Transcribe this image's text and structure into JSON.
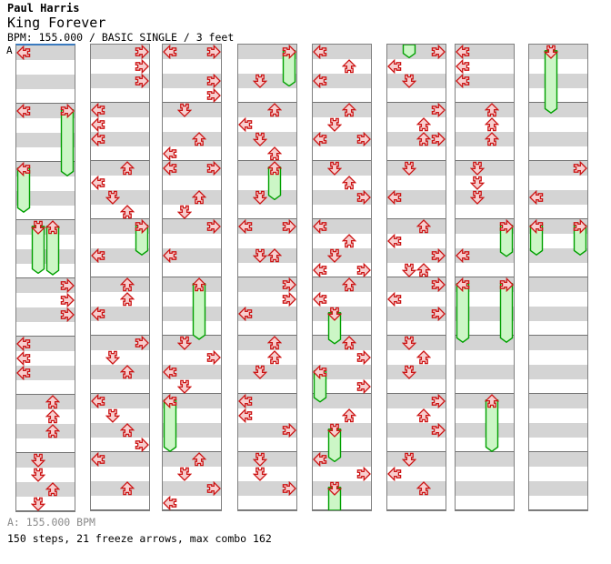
{
  "header": {
    "artist": "Paul Harris",
    "title": "King Forever",
    "info": "BPM: 155.000 / BASIC SINGLE / 3 feet"
  },
  "marker": {
    "label": "A"
  },
  "footer": {
    "bpm_note": "A: 155.000 BPM",
    "stats": "150 steps, 21 freeze arrows, max combo 162"
  },
  "colors": {
    "arrow_fill": "#f7cfcf",
    "arrow_stroke": "#cc1414",
    "freeze_fill": "#ccf6c6",
    "freeze_stroke": "#00a000",
    "stripe_gray": "#d4d4d4",
    "measure_line": "#737373",
    "column_border": "#808080",
    "bpm_marker_blue": "#3a7abf",
    "footer_note_gray": "#8a8a8a"
  },
  "chart_data": {
    "type": "step_chart",
    "lanes": [
      "L",
      "D",
      "U",
      "R"
    ],
    "rows_per_column": 32,
    "beats_per_measure": 4,
    "bpm": "155.000",
    "columns": [
      {
        "arrows": [
          [
            0,
            "L"
          ],
          [
            4,
            "L"
          ],
          [
            4,
            "R"
          ],
          [
            8,
            "L"
          ],
          [
            12,
            "D"
          ],
          [
            12,
            "U"
          ],
          [
            16,
            "R"
          ],
          [
            17,
            "R"
          ],
          [
            18,
            "R"
          ],
          [
            20,
            "L"
          ],
          [
            21,
            "L"
          ],
          [
            22,
            "L"
          ],
          [
            24,
            "U"
          ],
          [
            25,
            "U"
          ],
          [
            26,
            "U"
          ],
          [
            28,
            "D"
          ],
          [
            29,
            "D"
          ],
          [
            30,
            "U"
          ],
          [
            31,
            "D"
          ]
        ],
        "freezes": [
          [
            "R",
            4,
            9,
            "normal"
          ],
          [
            "L",
            8,
            11.5,
            "normal"
          ],
          [
            "D",
            12,
            15.7,
            "normal"
          ],
          [
            "U",
            12,
            15.8,
            "normal"
          ]
        ]
      },
      {
        "arrows": [
          [
            0,
            "R"
          ],
          [
            1,
            "R"
          ],
          [
            2,
            "R"
          ],
          [
            4,
            "L"
          ],
          [
            5,
            "L"
          ],
          [
            6,
            "L"
          ],
          [
            8,
            "U"
          ],
          [
            9,
            "L"
          ],
          [
            10,
            "D"
          ],
          [
            11,
            "U"
          ],
          [
            12,
            "R"
          ],
          [
            14,
            "L"
          ],
          [
            16,
            "U"
          ],
          [
            17,
            "U"
          ],
          [
            18,
            "L"
          ],
          [
            20,
            "R"
          ],
          [
            21,
            "D"
          ],
          [
            22,
            "U"
          ],
          [
            24,
            "L"
          ],
          [
            25,
            "D"
          ],
          [
            26,
            "U"
          ],
          [
            27,
            "R"
          ],
          [
            28,
            "L"
          ],
          [
            30,
            "U"
          ]
        ],
        "freezes": [
          [
            "R",
            12,
            14.5,
            "normal"
          ]
        ]
      },
      {
        "arrows": [
          [
            0,
            "L"
          ],
          [
            0,
            "R"
          ],
          [
            2,
            "R"
          ],
          [
            3,
            "R"
          ],
          [
            4,
            "D"
          ],
          [
            6,
            "U"
          ],
          [
            7,
            "L"
          ],
          [
            8,
            "L"
          ],
          [
            8,
            "R"
          ],
          [
            10,
            "U"
          ],
          [
            11,
            "D"
          ],
          [
            12,
            "R"
          ],
          [
            14,
            "L"
          ],
          [
            16,
            "U"
          ],
          [
            20,
            "D"
          ],
          [
            21,
            "R"
          ],
          [
            22,
            "L"
          ],
          [
            23,
            "D"
          ],
          [
            24,
            "L"
          ],
          [
            28,
            "U"
          ],
          [
            29,
            "D"
          ],
          [
            30,
            "R"
          ],
          [
            31,
            "L"
          ]
        ],
        "freezes": [
          [
            "U",
            16,
            20.3,
            "normal"
          ],
          [
            "L",
            24,
            28,
            "normal"
          ]
        ]
      },
      {
        "arrows": [
          [
            0,
            "R"
          ],
          [
            2,
            "D"
          ],
          [
            4,
            "U"
          ],
          [
            5,
            "L"
          ],
          [
            6,
            "D"
          ],
          [
            7,
            "U"
          ],
          [
            8,
            "U"
          ],
          [
            10,
            "D"
          ],
          [
            12,
            "L"
          ],
          [
            12,
            "R"
          ],
          [
            14,
            "D"
          ],
          [
            14,
            "U"
          ],
          [
            16,
            "R"
          ],
          [
            17,
            "R"
          ],
          [
            18,
            "L"
          ],
          [
            20,
            "U"
          ],
          [
            21,
            "U"
          ],
          [
            22,
            "D"
          ],
          [
            24,
            "L"
          ],
          [
            25,
            "L"
          ],
          [
            26,
            "R"
          ],
          [
            28,
            "D"
          ],
          [
            29,
            "D"
          ],
          [
            30,
            "R"
          ]
        ],
        "freezes": [
          [
            "R",
            0,
            2.9,
            "normal"
          ],
          [
            "U",
            8,
            10.7,
            "normal"
          ]
        ]
      },
      {
        "arrows": [
          [
            0,
            "L"
          ],
          [
            1,
            "U"
          ],
          [
            2,
            "L"
          ],
          [
            4,
            "U"
          ],
          [
            5,
            "D"
          ],
          [
            6,
            "L"
          ],
          [
            6,
            "R"
          ],
          [
            8,
            "D"
          ],
          [
            9,
            "U"
          ],
          [
            10,
            "R"
          ],
          [
            12,
            "L"
          ],
          [
            13,
            "U"
          ],
          [
            14,
            "D"
          ],
          [
            15,
            "L"
          ],
          [
            15,
            "R"
          ],
          [
            16,
            "U"
          ],
          [
            17,
            "L"
          ],
          [
            18,
            "D"
          ],
          [
            20,
            "U"
          ],
          [
            21,
            "R"
          ],
          [
            22,
            "L"
          ],
          [
            23,
            "R"
          ],
          [
            25,
            "U"
          ],
          [
            26,
            "D"
          ],
          [
            28,
            "L"
          ],
          [
            29,
            "R"
          ],
          [
            30,
            "D"
          ]
        ],
        "freezes": [
          [
            "D",
            18,
            20.6,
            "normal"
          ],
          [
            "L",
            22,
            24.6,
            "normal"
          ],
          [
            "D",
            26,
            28.7,
            "normal"
          ],
          [
            "D",
            30,
            32,
            "open"
          ]
        ]
      },
      {
        "arrows": [
          [
            0,
            "R"
          ],
          [
            1,
            "L"
          ],
          [
            2,
            "D"
          ],
          [
            4,
            "R"
          ],
          [
            5,
            "U"
          ],
          [
            6,
            "U"
          ],
          [
            6,
            "R"
          ],
          [
            8,
            "D"
          ],
          [
            10,
            "L"
          ],
          [
            12,
            "U"
          ],
          [
            13,
            "L"
          ],
          [
            14,
            "R"
          ],
          [
            15,
            "D"
          ],
          [
            15,
            "U"
          ],
          [
            16,
            "R"
          ],
          [
            17,
            "L"
          ],
          [
            18,
            "R"
          ],
          [
            20,
            "D"
          ],
          [
            21,
            "U"
          ],
          [
            22,
            "D"
          ],
          [
            24,
            "R"
          ],
          [
            25,
            "U"
          ],
          [
            26,
            "R"
          ],
          [
            28,
            "D"
          ],
          [
            29,
            "L"
          ],
          [
            30,
            "U"
          ]
        ],
        "freezes": [
          [
            "D",
            0,
            0.95,
            "tail"
          ]
        ]
      },
      {
        "arrows": [
          [
            0,
            "L"
          ],
          [
            1,
            "L"
          ],
          [
            2,
            "L"
          ],
          [
            4,
            "U"
          ],
          [
            5,
            "U"
          ],
          [
            6,
            "U"
          ],
          [
            8,
            "D"
          ],
          [
            9,
            "D"
          ],
          [
            10,
            "D"
          ],
          [
            12,
            "R"
          ],
          [
            14,
            "L"
          ],
          [
            16,
            "L"
          ],
          [
            16,
            "R"
          ],
          [
            24,
            "U"
          ]
        ],
        "freezes": [
          [
            "R",
            12,
            14.6,
            "normal"
          ],
          [
            "L",
            16,
            20.5,
            "normal"
          ],
          [
            "R",
            16,
            20.5,
            "normal"
          ],
          [
            "U",
            24,
            28,
            "normal"
          ]
        ]
      },
      {
        "arrows": [
          [
            0,
            "D"
          ],
          [
            8,
            "R"
          ],
          [
            10,
            "L"
          ],
          [
            12,
            "L"
          ],
          [
            12,
            "R"
          ]
        ],
        "freezes": [
          [
            "D",
            0,
            4.75,
            "normal"
          ],
          [
            "L",
            12,
            14.5,
            "normal"
          ],
          [
            "R",
            12,
            14.5,
            "normal"
          ]
        ]
      }
    ]
  }
}
